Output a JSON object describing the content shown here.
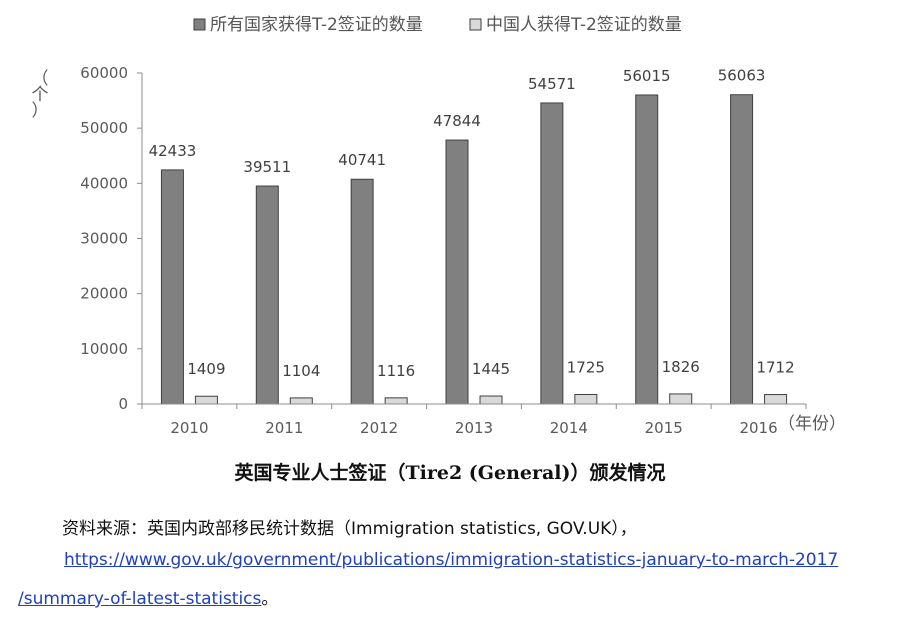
{
  "chart_data": {
    "type": "bar",
    "categories": [
      "2010",
      "2011",
      "2012",
      "2013",
      "2014",
      "2015",
      "2016"
    ],
    "series": [
      {
        "name": "所有国家获得T-2签证的数量",
        "values": [
          42433,
          39511,
          40741,
          47844,
          54571,
          56015,
          56063
        ],
        "color": "#808080"
      },
      {
        "name": "中国人获得T-2签证的数量",
        "values": [
          1409,
          1104,
          1116,
          1445,
          1725,
          1826,
          1712
        ],
        "color": "#d9d9d9"
      }
    ],
    "yticks": [
      "0",
      "10000",
      "20000",
      "30000",
      "40000",
      "50000",
      "60000"
    ],
    "ylim": [
      0,
      60000
    ],
    "ylabel": "（个）",
    "xlabel": "（年份）",
    "legend_position": "top",
    "grid": false
  },
  "caption": "英国专业人士签证（Tire2 (General)）颁发情况",
  "source": {
    "text": "资料来源：英国内政部移民统计数据（Immigration statistics, GOV.UK），",
    "link_line1": "https://www.gov.uk/government/publications/immigration-statistics-january-to-march-2017",
    "link_line2": "/summary-of-latest-statistics",
    "end_mark": "。"
  }
}
